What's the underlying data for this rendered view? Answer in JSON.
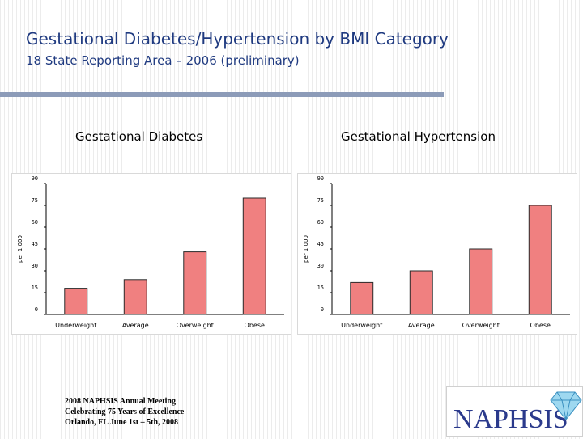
{
  "header": {
    "title": "Gestational Diabetes/Hypertension by BMI Category",
    "subtitle": "18 State Reporting Area – 2006 (preliminary)"
  },
  "colors": {
    "title": "#1f3a80",
    "bar_fill": "#f08080",
    "bar_stroke": "#2a2a2a",
    "rule": "#8c9bb8"
  },
  "chart_data": [
    {
      "type": "bar",
      "title": "Gestational Diabetes",
      "ylabel": "per 1,000",
      "xlabel": "",
      "categories": [
        "Underweight",
        "Average",
        "Overweight",
        "Obese"
      ],
      "values": [
        18,
        24,
        43,
        80
      ],
      "yticks": [
        "0",
        "15",
        "30",
        "45",
        "60",
        "75",
        "90"
      ],
      "ylim": [
        0,
        90
      ],
      "grid": false,
      "legend": "none"
    },
    {
      "type": "bar",
      "title": "Gestational Hypertension",
      "ylabel": "per 1,000",
      "xlabel": "",
      "categories": [
        "Underweight",
        "Average",
        "Overweight",
        "Obese"
      ],
      "values": [
        22,
        30,
        45,
        75
      ],
      "yticks": [
        "0",
        "15",
        "30",
        "45",
        "60",
        "75",
        "90"
      ],
      "ylim": [
        0,
        90
      ],
      "grid": false,
      "legend": "none"
    }
  ],
  "footer": {
    "line1": "2008 NAPHSIS Annual Meeting",
    "line2": "Celebrating 75 Years of Excellence",
    "line3": "Orlando, FL      June 1st – 5th, 2008"
  },
  "logo": {
    "text": "NAPHSIS",
    "icon": "diamond-icon"
  }
}
